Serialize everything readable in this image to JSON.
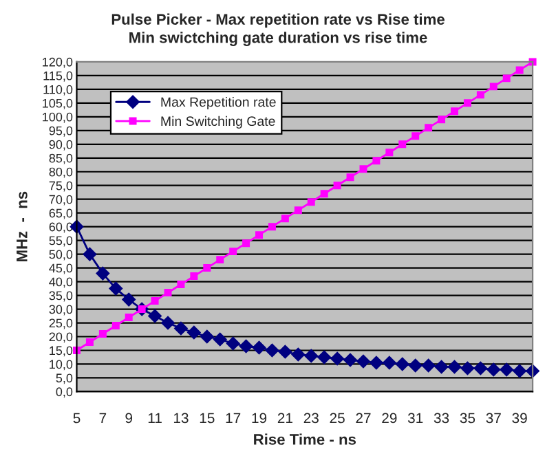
{
  "chart_data": {
    "type": "line",
    "title": "Pulse Picker - Max repetition rate vs Rise time",
    "subtitle": "Min swictching gate duration vs rise time",
    "xlabel": "Rise Time - ns",
    "ylabel": "MHz  -  ns",
    "categories": [
      "5",
      null,
      "7",
      null,
      "9",
      null,
      "11",
      null,
      "13",
      null,
      "15",
      null,
      "17",
      null,
      "19",
      null,
      "21",
      null,
      "23",
      null,
      "25",
      null,
      "27",
      null,
      "29",
      null,
      "31",
      null,
      "33",
      null,
      "35",
      null,
      "37",
      null,
      "39",
      null
    ],
    "series": [
      {
        "name": "Max Repetition rate",
        "color": "#000080",
        "marker": "diamond",
        "values": [
          60,
          50,
          43,
          37.5,
          33.5,
          30,
          27.5,
          25,
          23,
          21.5,
          20,
          19,
          17.5,
          16.5,
          16,
          15,
          14.5,
          13.5,
          13,
          12.5,
          12,
          11.5,
          11,
          10.5,
          10.5,
          10,
          9.5,
          9.5,
          9,
          9,
          8.5,
          8.5,
          8,
          8,
          7.5,
          7.5
        ]
      },
      {
        "name": "Min Switching Gate",
        "color": "#ff00ff",
        "marker": "square",
        "values": [
          15,
          18,
          21,
          24,
          27,
          30,
          33,
          36,
          39,
          42,
          45,
          48,
          51,
          54,
          57,
          60,
          63,
          66,
          69,
          72,
          75,
          78,
          81,
          84,
          87,
          90,
          93,
          96,
          99,
          102,
          105,
          108,
          111,
          114,
          117,
          120
        ]
      }
    ],
    "ylim": [
      0,
      120
    ],
    "yticks": [
      {
        "value": 0,
        "label": "0,0"
      },
      {
        "value": 5,
        "label": "5,0"
      },
      {
        "value": 10,
        "label": "10,0"
      },
      {
        "value": 15,
        "label": "15,0"
      },
      {
        "value": 20,
        "label": "20,0"
      },
      {
        "value": 25,
        "label": "25,0"
      },
      {
        "value": 30,
        "label": "30,0"
      },
      {
        "value": 35,
        "label": "35,0"
      },
      {
        "value": 40,
        "label": "40,0"
      },
      {
        "value": 45,
        "label": "45,0"
      },
      {
        "value": 50,
        "label": "50,0"
      },
      {
        "value": 55,
        "label": "55,0"
      },
      {
        "value": 60,
        "label": "60,0"
      },
      {
        "value": 65,
        "label": "65,0"
      },
      {
        "value": 70,
        "label": "70,0"
      },
      {
        "value": 75,
        "label": "75,0"
      },
      {
        "value": 80,
        "label": "80,0"
      },
      {
        "value": 85,
        "label": "85,0"
      },
      {
        "value": 90,
        "label": "90,0"
      },
      {
        "value": 95,
        "label": "95,0"
      },
      {
        "value": 100,
        "label": "100,0"
      },
      {
        "value": 105,
        "label": "105,0"
      },
      {
        "value": 110,
        "label": "110,0"
      },
      {
        "value": 115,
        "label": "115,0"
      },
      {
        "value": 120,
        "label": "120,0"
      }
    ],
    "grid": "y",
    "legend": "top left",
    "line_style": "solid"
  }
}
